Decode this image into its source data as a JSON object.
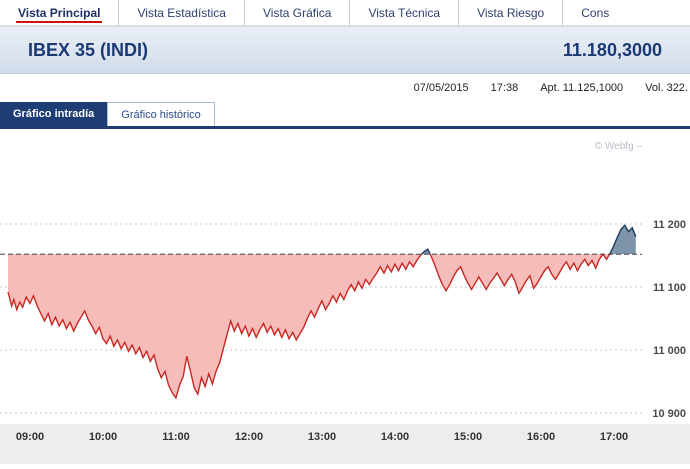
{
  "nav": {
    "items": [
      {
        "label": "Vista Principal",
        "active": true
      },
      {
        "label": "Vista Estadística",
        "active": false
      },
      {
        "label": "Vista Gráfica",
        "active": false
      },
      {
        "label": "Vista Técnica",
        "active": false
      },
      {
        "label": "Vista Riesgo",
        "active": false
      },
      {
        "label": "Cons",
        "active": false
      }
    ]
  },
  "header": {
    "title": "IBEX 35 (INDI)",
    "last_price": "11.180,3000"
  },
  "info_bar": {
    "date": "07/05/2015",
    "time": "17:38",
    "open": "Apt. 11.125,1000",
    "volume": "Vol. 322."
  },
  "tabs": [
    {
      "label": "Gráfico intradía",
      "active": true
    },
    {
      "label": "Gráfico histórico",
      "active": false
    }
  ],
  "chart_data": {
    "type": "area",
    "title": "IBEX 35 intradía",
    "watermark": "© Webfg –",
    "x_ticks": {
      "values": [
        9,
        10,
        11,
        12,
        13,
        14,
        15,
        16,
        17
      ],
      "labels": [
        "09:00",
        "10:00",
        "11:00",
        "12:00",
        "13:00",
        "14:00",
        "15:00",
        "16:00",
        "17:00"
      ]
    },
    "y_ticks": {
      "values": [
        11200,
        11100,
        11000,
        10900
      ],
      "labels": [
        "11 200",
        "11 100",
        "11 000",
        "10 900"
      ]
    },
    "x_range": [
      9.0,
      17.63
    ],
    "ylim": [
      10860,
      11350
    ],
    "reference_value": 11152,
    "reference_style": "dashed",
    "last_value": 11180.3,
    "session_low": 10924,
    "session_high": 11198,
    "colors": {
      "line": "#c82822",
      "fill_below": "#f6bcba",
      "line_above": "#1e3a5c",
      "fill_above": "#7d94ab",
      "reference": "#444444",
      "grid": "#c9c9c9",
      "axis_strip": "#ededed"
    },
    "series": [
      {
        "name": "IBEX 35",
        "points": [
          [
            9.0,
            11092
          ],
          [
            9.05,
            11070
          ],
          [
            9.08,
            11080
          ],
          [
            9.12,
            11064
          ],
          [
            9.16,
            11076
          ],
          [
            9.2,
            11068
          ],
          [
            9.25,
            11084
          ],
          [
            9.3,
            11074
          ],
          [
            9.35,
            11086
          ],
          [
            9.4,
            11070
          ],
          [
            9.45,
            11058
          ],
          [
            9.5,
            11046
          ],
          [
            9.55,
            11058
          ],
          [
            9.6,
            11040
          ],
          [
            9.65,
            11052
          ],
          [
            9.7,
            11038
          ],
          [
            9.75,
            11048
          ],
          [
            9.8,
            11034
          ],
          [
            9.85,
            11044
          ],
          [
            9.9,
            11030
          ],
          [
            9.95,
            11042
          ],
          [
            10.0,
            11052
          ],
          [
            10.05,
            11062
          ],
          [
            10.1,
            11048
          ],
          [
            10.15,
            11038
          ],
          [
            10.2,
            11026
          ],
          [
            10.25,
            11036
          ],
          [
            10.3,
            11018
          ],
          [
            10.35,
            11010
          ],
          [
            10.4,
            11022
          ],
          [
            10.45,
            11006
          ],
          [
            10.5,
            11016
          ],
          [
            10.55,
            11002
          ],
          [
            10.6,
            11012
          ],
          [
            10.65,
            10998
          ],
          [
            10.7,
            11008
          ],
          [
            10.75,
            10994
          ],
          [
            10.8,
            11004
          ],
          [
            10.85,
            10988
          ],
          [
            10.9,
            10998
          ],
          [
            10.95,
            10982
          ],
          [
            11.0,
            10992
          ],
          [
            11.05,
            10970
          ],
          [
            11.1,
            10956
          ],
          [
            11.15,
            10966
          ],
          [
            11.2,
            10944
          ],
          [
            11.25,
            10932
          ],
          [
            11.3,
            10924
          ],
          [
            11.35,
            10944
          ],
          [
            11.4,
            10958
          ],
          [
            11.45,
            10990
          ],
          [
            11.5,
            10966
          ],
          [
            11.55,
            10940
          ],
          [
            11.6,
            10930
          ],
          [
            11.65,
            10956
          ],
          [
            11.7,
            10942
          ],
          [
            11.75,
            10962
          ],
          [
            11.8,
            10946
          ],
          [
            11.85,
            10966
          ],
          [
            11.9,
            10980
          ],
          [
            11.95,
            11002
          ],
          [
            12.0,
            11024
          ],
          [
            12.05,
            11046
          ],
          [
            12.1,
            11030
          ],
          [
            12.15,
            11042
          ],
          [
            12.2,
            11026
          ],
          [
            12.25,
            11038
          ],
          [
            12.3,
            11022
          ],
          [
            12.35,
            11034
          ],
          [
            12.4,
            11020
          ],
          [
            12.45,
            11032
          ],
          [
            12.5,
            11042
          ],
          [
            12.55,
            11028
          ],
          [
            12.6,
            11038
          ],
          [
            12.65,
            11024
          ],
          [
            12.7,
            11034
          ],
          [
            12.75,
            11020
          ],
          [
            12.8,
            11032
          ],
          [
            12.85,
            11018
          ],
          [
            12.9,
            11028
          ],
          [
            12.95,
            11016
          ],
          [
            13.0,
            11026
          ],
          [
            13.05,
            11036
          ],
          [
            13.1,
            11050
          ],
          [
            13.15,
            11062
          ],
          [
            13.2,
            11052
          ],
          [
            13.25,
            11066
          ],
          [
            13.3,
            11078
          ],
          [
            13.35,
            11064
          ],
          [
            13.4,
            11074
          ],
          [
            13.45,
            11086
          ],
          [
            13.5,
            11076
          ],
          [
            13.55,
            11090
          ],
          [
            13.6,
            11080
          ],
          [
            13.65,
            11094
          ],
          [
            13.7,
            11104
          ],
          [
            13.75,
            11094
          ],
          [
            13.8,
            11108
          ],
          [
            13.85,
            11098
          ],
          [
            13.9,
            11112
          ],
          [
            13.95,
            11104
          ],
          [
            14.0,
            11114
          ],
          [
            14.05,
            11122
          ],
          [
            14.1,
            11132
          ],
          [
            14.15,
            11122
          ],
          [
            14.2,
            11134
          ],
          [
            14.25,
            11124
          ],
          [
            14.3,
            11136
          ],
          [
            14.35,
            11126
          ],
          [
            14.4,
            11138
          ],
          [
            14.45,
            11128
          ],
          [
            14.5,
            11140
          ],
          [
            14.55,
            11132
          ],
          [
            14.6,
            11142
          ],
          [
            14.65,
            11150
          ],
          [
            14.7,
            11156
          ],
          [
            14.75,
            11160
          ],
          [
            14.8,
            11148
          ],
          [
            14.85,
            11134
          ],
          [
            14.9,
            11118
          ],
          [
            14.95,
            11104
          ],
          [
            15.0,
            11094
          ],
          [
            15.05,
            11104
          ],
          [
            15.1,
            11116
          ],
          [
            15.15,
            11126
          ],
          [
            15.2,
            11132
          ],
          [
            15.25,
            11118
          ],
          [
            15.3,
            11106
          ],
          [
            15.35,
            11096
          ],
          [
            15.4,
            11106
          ],
          [
            15.45,
            11116
          ],
          [
            15.5,
            11106
          ],
          [
            15.55,
            11096
          ],
          [
            15.6,
            11106
          ],
          [
            15.65,
            11114
          ],
          [
            15.7,
            11122
          ],
          [
            15.75,
            11112
          ],
          [
            15.8,
            11102
          ],
          [
            15.85,
            11112
          ],
          [
            15.9,
            11120
          ],
          [
            15.95,
            11108
          ],
          [
            16.0,
            11090
          ],
          [
            16.05,
            11100
          ],
          [
            16.1,
            11110
          ],
          [
            16.15,
            11118
          ],
          [
            16.2,
            11098
          ],
          [
            16.25,
            11106
          ],
          [
            16.3,
            11116
          ],
          [
            16.35,
            11126
          ],
          [
            16.4,
            11132
          ],
          [
            16.45,
            11120
          ],
          [
            16.5,
            11112
          ],
          [
            16.55,
            11122
          ],
          [
            16.6,
            11132
          ],
          [
            16.65,
            11140
          ],
          [
            16.7,
            11128
          ],
          [
            16.75,
            11138
          ],
          [
            16.8,
            11126
          ],
          [
            16.85,
            11136
          ],
          [
            16.9,
            11144
          ],
          [
            16.95,
            11134
          ],
          [
            17.0,
            11142
          ],
          [
            17.05,
            11130
          ],
          [
            17.1,
            11144
          ],
          [
            17.15,
            11152
          ],
          [
            17.2,
            11144
          ],
          [
            17.25,
            11154
          ],
          [
            17.3,
            11166
          ],
          [
            17.35,
            11180
          ],
          [
            17.4,
            11192
          ],
          [
            17.45,
            11198
          ],
          [
            17.5,
            11188
          ],
          [
            17.55,
            11194
          ],
          [
            17.6,
            11180
          ]
        ]
      }
    ]
  }
}
